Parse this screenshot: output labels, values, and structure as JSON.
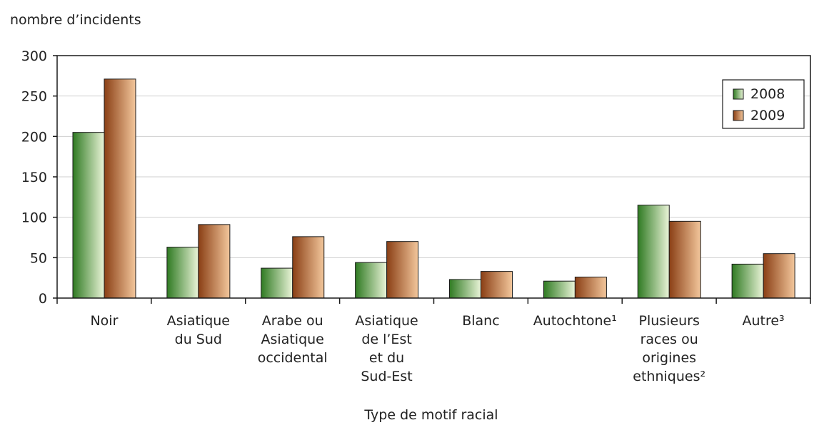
{
  "chart_data": {
    "type": "bar",
    "title": "",
    "ylabel": "nombre d’incidents",
    "xlabel": "Type de motif racial",
    "ylim": [
      0,
      300
    ],
    "yticks": [
      "0",
      "50",
      "100",
      "150",
      "200",
      "250",
      "300"
    ],
    "grid": true,
    "legend_position": "top-right",
    "categories": [
      [
        "Noir"
      ],
      [
        "Asiatique",
        "du Sud"
      ],
      [
        "Arabe ou",
        "Asiatique",
        "occidental"
      ],
      [
        "Asiatique",
        "de l’Est",
        "et du",
        "Sud-Est"
      ],
      [
        "Blanc"
      ],
      [
        "Autochtone¹"
      ],
      [
        "Plusieurs",
        "races ou",
        "origines",
        "ethniques²"
      ],
      [
        "Autre³"
      ]
    ],
    "series": [
      {
        "name": "2008",
        "values": [
          205,
          63,
          37,
          44,
          23,
          21,
          115,
          42
        ],
        "color_dark": "#2f7a22",
        "color_light": "#eaf4d8"
      },
      {
        "name": "2009",
        "values": [
          271,
          91,
          76,
          70,
          33,
          26,
          95,
          55
        ],
        "color_dark": "#8a3f15",
        "color_light": "#f3c79c"
      }
    ]
  }
}
